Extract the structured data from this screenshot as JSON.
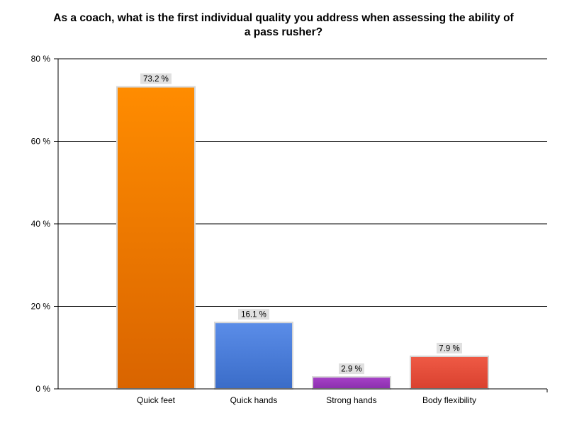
{
  "chart_data": {
    "type": "bar",
    "title_lines": [
      "As a coach, what is the first individual quality you address when assessing the ability of",
      "a pass rusher?"
    ],
    "categories": [
      "Quick feet",
      "Quick hands",
      "Strong hands",
      "Body flexibility"
    ],
    "values": [
      73.2,
      16.1,
      2.9,
      7.9
    ],
    "value_labels": [
      "73.2 %",
      "16.1 %",
      "2.9 %",
      "7.9 %"
    ],
    "colors": [
      "#ff8c00",
      "#5b8de8",
      "#a742c8",
      "#ef5a45"
    ],
    "colors_dark": [
      "#d96400",
      "#3a6cc8",
      "#8a2fad",
      "#d9412f"
    ],
    "ylim": [
      0,
      80
    ],
    "yticks": [
      0,
      20,
      40,
      60,
      80
    ],
    "ytick_labels": [
      "0 %",
      "20 %",
      "40 %",
      "60 %",
      "80 %"
    ],
    "xlabel": "",
    "ylabel": "",
    "grid": true,
    "legend": "none"
  }
}
